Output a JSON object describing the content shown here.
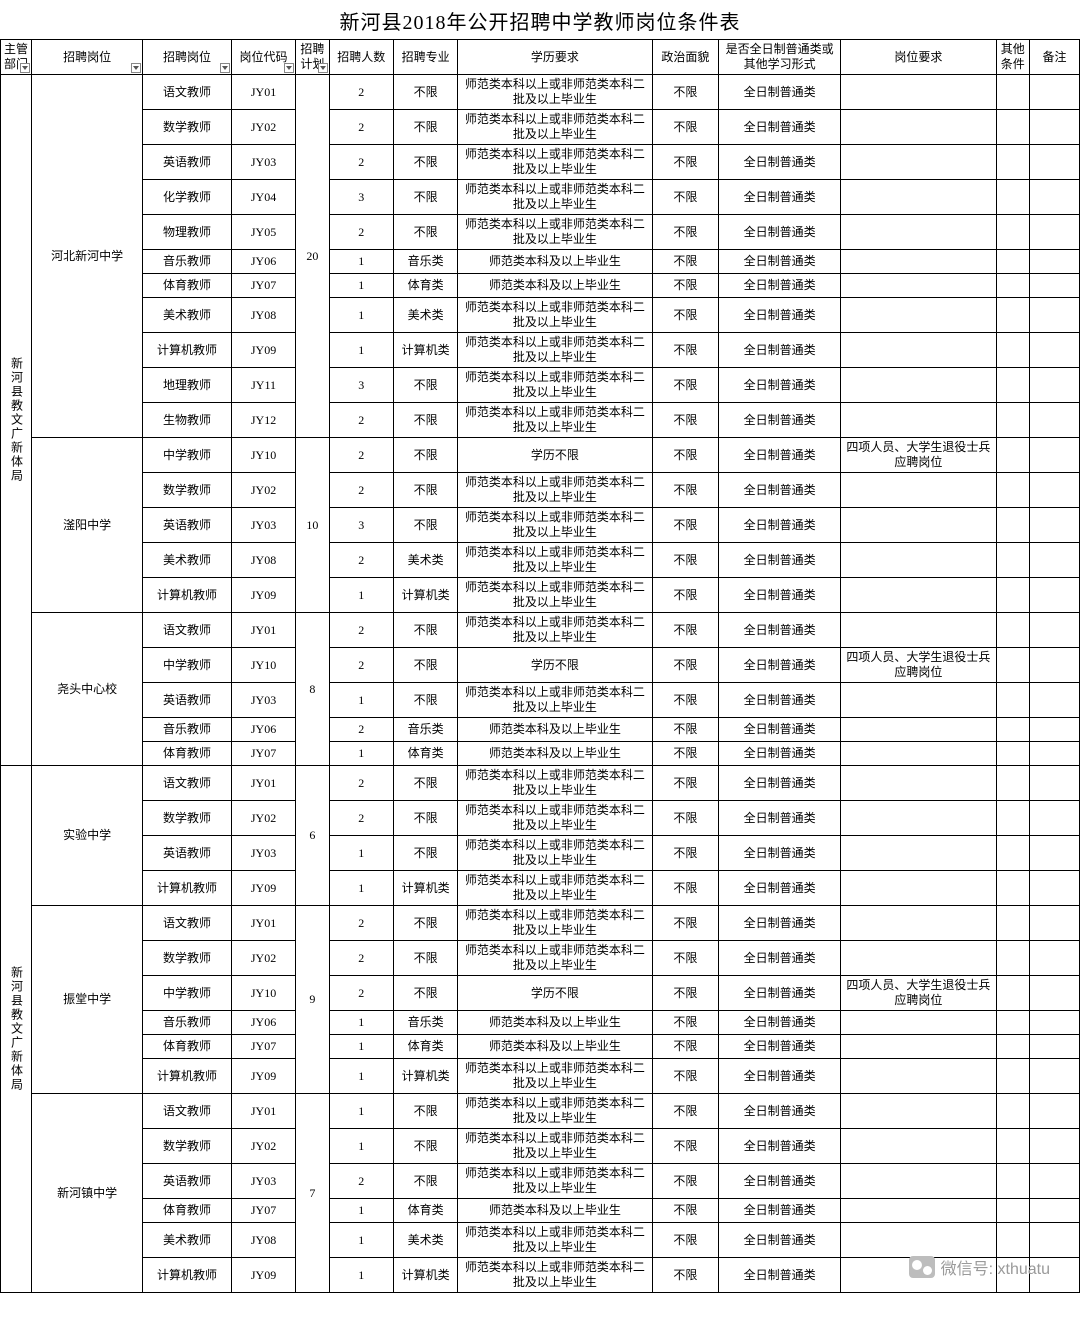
{
  "title": "新河县2018年公开招聘中学教师岗位条件表",
  "watermark": "微信号: xthuatu",
  "headers": {
    "c0": "主管部门",
    "c1": "招聘岗位",
    "c2": "招聘岗位",
    "c3": "岗位代码",
    "c4": "招聘计划",
    "c5": "招聘人数",
    "c6": "招聘专业",
    "c7": "学历要求",
    "c8": "政治面貌",
    "c9": "是否全日制普通类或其他学习形式",
    "c10": "岗位要求",
    "c11": "其他条件",
    "c12": "备注"
  },
  "edu_long": "师范类本科以上或非师范类本科二批及以上毕业生",
  "edu_short": "师范类本科及以上毕业生",
  "edu_none": "学历不限",
  "major_none": "不限",
  "pol_none": "不限",
  "ft_yes": "全日制普通类",
  "req_special": "四项人员、大学生退役士兵应聘岗位",
  "dept1": "新河县教文广新体局",
  "dept2": "新河县教文广新体局",
  "schools": [
    {
      "unit": "河北新河中学",
      "plan": "20",
      "rows": [
        {
          "pos": "语文教师",
          "code": "JY01",
          "count": "2",
          "major": "不限",
          "edu": "long",
          "req": ""
        },
        {
          "pos": "数学教师",
          "code": "JY02",
          "count": "2",
          "major": "不限",
          "edu": "long",
          "req": ""
        },
        {
          "pos": "英语教师",
          "code": "JY03",
          "count": "2",
          "major": "不限",
          "edu": "long",
          "req": ""
        },
        {
          "pos": "化学教师",
          "code": "JY04",
          "count": "3",
          "major": "不限",
          "edu": "long",
          "req": ""
        },
        {
          "pos": "物理教师",
          "code": "JY05",
          "count": "2",
          "major": "不限",
          "edu": "long",
          "req": ""
        },
        {
          "pos": "音乐教师",
          "code": "JY06",
          "count": "1",
          "major": "音乐类",
          "edu": "short",
          "req": ""
        },
        {
          "pos": "体育教师",
          "code": "JY07",
          "count": "1",
          "major": "体育类",
          "edu": "short",
          "req": ""
        },
        {
          "pos": "美术教师",
          "code": "JY08",
          "count": "1",
          "major": "美术类",
          "edu": "long",
          "req": ""
        },
        {
          "pos": "计算机教师",
          "code": "JY09",
          "count": "1",
          "major": "计算机类",
          "edu": "long",
          "req": ""
        },
        {
          "pos": "地理教师",
          "code": "JY11",
          "count": "3",
          "major": "不限",
          "edu": "long",
          "req": ""
        },
        {
          "pos": "生物教师",
          "code": "JY12",
          "count": "2",
          "major": "不限",
          "edu": "long",
          "req": ""
        }
      ]
    },
    {
      "unit": "滏阳中学",
      "plan": "10",
      "rows": [
        {
          "pos": "中学教师",
          "code": "JY10",
          "count": "2",
          "major": "不限",
          "edu": "none",
          "req": "special"
        },
        {
          "pos": "数学教师",
          "code": "JY02",
          "count": "2",
          "major": "不限",
          "edu": "long",
          "req": ""
        },
        {
          "pos": "英语教师",
          "code": "JY03",
          "count": "3",
          "major": "不限",
          "edu": "long",
          "req": ""
        },
        {
          "pos": "美术教师",
          "code": "JY08",
          "count": "2",
          "major": "美术类",
          "edu": "long",
          "req": ""
        },
        {
          "pos": "计算机教师",
          "code": "JY09",
          "count": "1",
          "major": "计算机类",
          "edu": "long",
          "req": ""
        }
      ]
    },
    {
      "unit": "尧头中心校",
      "plan": "8",
      "rows": [
        {
          "pos": "语文教师",
          "code": "JY01",
          "count": "2",
          "major": "不限",
          "edu": "long",
          "req": ""
        },
        {
          "pos": "中学教师",
          "code": "JY10",
          "count": "2",
          "major": "不限",
          "edu": "none",
          "req": "special"
        },
        {
          "pos": "英语教师",
          "code": "JY03",
          "count": "1",
          "major": "不限",
          "edu": "long",
          "req": ""
        },
        {
          "pos": "音乐教师",
          "code": "JY06",
          "count": "2",
          "major": "音乐类",
          "edu": "short",
          "req": ""
        },
        {
          "pos": "体育教师",
          "code": "JY07",
          "count": "1",
          "major": "体育类",
          "edu": "short",
          "req": ""
        }
      ]
    },
    {
      "unit": "实验中学",
      "plan": "6",
      "rows": [
        {
          "pos": "语文教师",
          "code": "JY01",
          "count": "2",
          "major": "不限",
          "edu": "long",
          "req": ""
        },
        {
          "pos": "数学教师",
          "code": "JY02",
          "count": "2",
          "major": "不限",
          "edu": "long",
          "req": ""
        },
        {
          "pos": "英语教师",
          "code": "JY03",
          "count": "1",
          "major": "不限",
          "edu": "long",
          "req": ""
        },
        {
          "pos": "计算机教师",
          "code": "JY09",
          "count": "1",
          "major": "计算机类",
          "edu": "long",
          "req": ""
        }
      ]
    },
    {
      "unit": "振堂中学",
      "plan": "9",
      "rows": [
        {
          "pos": "语文教师",
          "code": "JY01",
          "count": "2",
          "major": "不限",
          "edu": "long",
          "req": ""
        },
        {
          "pos": "数学教师",
          "code": "JY02",
          "count": "2",
          "major": "不限",
          "edu": "long",
          "req": ""
        },
        {
          "pos": "中学教师",
          "code": "JY10",
          "count": "2",
          "major": "不限",
          "edu": "none",
          "req": "special"
        },
        {
          "pos": "音乐教师",
          "code": "JY06",
          "count": "1",
          "major": "音乐类",
          "edu": "short",
          "req": ""
        },
        {
          "pos": "体育教师",
          "code": "JY07",
          "count": "1",
          "major": "体育类",
          "edu": "short",
          "req": ""
        },
        {
          "pos": "计算机教师",
          "code": "JY09",
          "count": "1",
          "major": "计算机类",
          "edu": "long",
          "req": ""
        }
      ]
    },
    {
      "unit": "新河镇中学",
      "plan": "7",
      "rows": [
        {
          "pos": "语文教师",
          "code": "JY01",
          "count": "1",
          "major": "不限",
          "edu": "long",
          "req": ""
        },
        {
          "pos": "数学教师",
          "code": "JY02",
          "count": "1",
          "major": "不限",
          "edu": "long",
          "req": ""
        },
        {
          "pos": "英语教师",
          "code": "JY03",
          "count": "2",
          "major": "不限",
          "edu": "long",
          "req": ""
        },
        {
          "pos": "体育教师",
          "code": "JY07",
          "count": "1",
          "major": "体育类",
          "edu": "short",
          "req": ""
        },
        {
          "pos": "美术教师",
          "code": "JY08",
          "count": "1",
          "major": "美术类",
          "edu": "long",
          "req": ""
        },
        {
          "pos": "计算机教师",
          "code": "JY09",
          "count": "1",
          "major": "计算机类",
          "edu": "long",
          "req": ""
        }
      ]
    }
  ],
  "dept_split": 3
}
